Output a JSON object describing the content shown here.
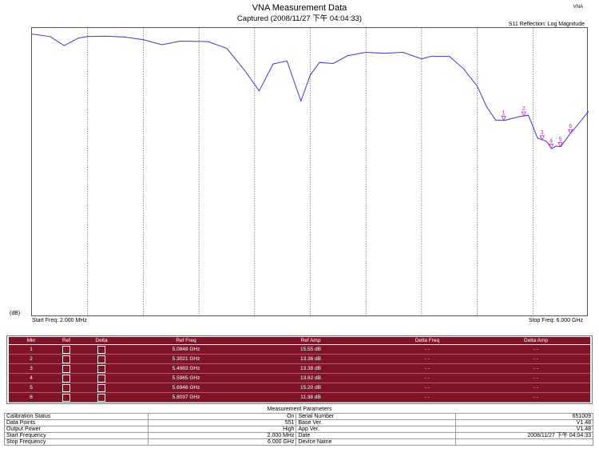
{
  "header": {
    "title": "VNA Measurement Data",
    "captured": "Captured  (2008/11/27 下午 04:04:33)",
    "corner": "VNA",
    "measurement": "S11 Reflection: Log Magnitude"
  },
  "chart": {
    "y_unit": "(dB)",
    "start_label": "Start Freq: 2.000 MHz",
    "stop_label": "Stop Freq: 6.000 GHz",
    "trace_color": "#3a3ac8",
    "marker_color": "#d21ed2"
  },
  "chart_data": {
    "type": "line",
    "x_range_ghz": [
      0.002,
      6.0
    ],
    "xlabel": "",
    "ylabel": "(dB)",
    "grid": "vertical",
    "series": [
      {
        "x": [
          0.002,
          0.2,
          0.35,
          0.5,
          0.6,
          0.8,
          1.0,
          1.2,
          1.4,
          1.6,
          1.9,
          2.1,
          2.3,
          2.45,
          2.6,
          2.75,
          2.9,
          3.0,
          3.1,
          3.25,
          3.4,
          3.6,
          3.8,
          4.0,
          4.2,
          4.3,
          4.5,
          4.65,
          4.8,
          4.9,
          5.0,
          5.1,
          5.25,
          5.35,
          5.45,
          5.55,
          5.6,
          5.65,
          5.7,
          5.8,
          5.9,
          6.0
        ],
        "y": [
          35.8,
          35.3,
          33.5,
          35.0,
          35.3,
          35.4,
          35.2,
          34.7,
          33.7,
          34.4,
          34.3,
          33.0,
          28.5,
          24.6,
          29.9,
          30.5,
          22.6,
          27.7,
          30.2,
          30.0,
          31.5,
          32.2,
          32.0,
          32.2,
          30.9,
          31.4,
          31.4,
          29.0,
          25.5,
          21.5,
          18.8,
          18.8,
          19.5,
          19.8,
          15.3,
          14.6,
          13.2,
          13.7,
          13.6,
          16.1,
          18.3,
          20.6
        ]
      }
    ],
    "markers": [
      {
        "id": "1",
        "freq_ghz": 5.0848,
        "amp_db": 15.55
      },
      {
        "id": "2",
        "freq_ghz": 5.3021,
        "amp_db": 13.36
      },
      {
        "id": "3",
        "freq_ghz": 5.4983,
        "amp_db": 13.38
      },
      {
        "id": "4",
        "freq_ghz": 5.5965,
        "amp_db": 13.62
      },
      {
        "id": "5",
        "freq_ghz": 5.6946,
        "amp_db": 15.2
      },
      {
        "id": "6",
        "freq_ghz": 5.8037,
        "amp_db": 11.38
      }
    ]
  },
  "markers_table": {
    "headers": [
      "Mkr",
      "Ref",
      "Delta",
      "Ref Freq",
      "Ref Amp",
      "Delta Freq",
      "Delta Amp"
    ],
    "rows": [
      {
        "mkr": "1",
        "ref_freq": "5.0848 GHz",
        "ref_amp": "15.55 dB",
        "delta_freq": "- -",
        "delta_amp": "- -"
      },
      {
        "mkr": "2",
        "ref_freq": "5.3021 GHz",
        "ref_amp": "13.36 dB",
        "delta_freq": "- -",
        "delta_amp": "- -"
      },
      {
        "mkr": "3",
        "ref_freq": "5.4983 GHz",
        "ref_amp": "13.38 dB",
        "delta_freq": "- -",
        "delta_amp": "- -"
      },
      {
        "mkr": "4",
        "ref_freq": "5.5965 GHz",
        "ref_amp": "13.62 dB",
        "delta_freq": "- -",
        "delta_amp": "- -"
      },
      {
        "mkr": "5",
        "ref_freq": "5.6946 GHz",
        "ref_amp": "15.20 dB",
        "delta_freq": "- -",
        "delta_amp": "- -"
      },
      {
        "mkr": "6",
        "ref_freq": "5.8037 GHz",
        "ref_amp": "11.38 dB",
        "delta_freq": "- -",
        "delta_amp": "- -"
      }
    ]
  },
  "params": {
    "title": "Measurement Parameters",
    "rows": [
      {
        "label": "Calibration Status",
        "value": "On",
        "label2": "Serial Number",
        "value2": "651009"
      },
      {
        "label": "Data Points",
        "value": "551",
        "label2": "Base Ver.",
        "value2": "V1.48"
      },
      {
        "label": "Output Power",
        "value": "High",
        "label2": "App Ver.",
        "value2": "V1.48"
      },
      {
        "label": "Start Frequency",
        "value": "2.000 MHz",
        "label2": "Date",
        "value2": "2008/11/27 下午 04:04:33"
      },
      {
        "label": "Stop Frequency",
        "value": "6.000 GHz",
        "label2": "Device Name",
        "value2": ""
      }
    ]
  }
}
